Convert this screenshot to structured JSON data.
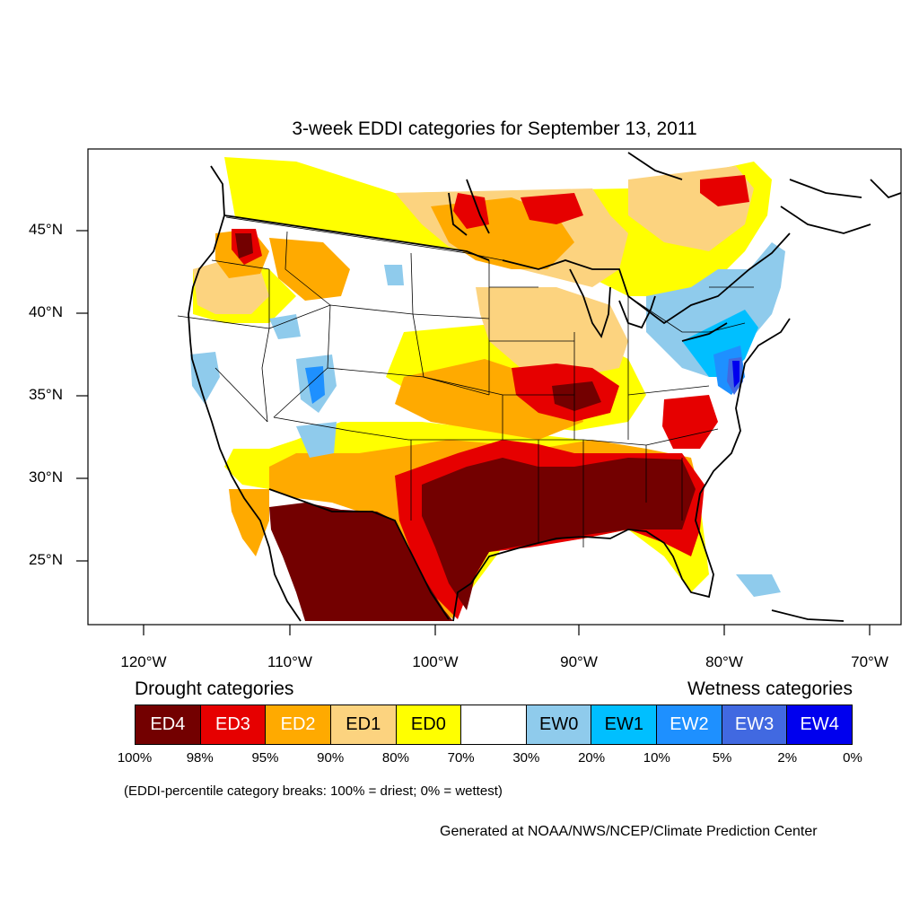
{
  "title": "3-week EDDI categories for September 13, 2011",
  "lat_labels": [
    "45°N",
    "40°N",
    "35°N",
    "30°N",
    "25°N"
  ],
  "lon_labels": [
    "120°W",
    "110°W",
    "100°W",
    "90°W",
    "80°W",
    "70°W"
  ],
  "legend": {
    "drought_heading": "Drought categories",
    "wetness_heading": "Wetness categories",
    "categories": [
      {
        "label": "ED4",
        "color": "#730000",
        "text_color": "#ffffff"
      },
      {
        "label": "ED3",
        "color": "#e60000",
        "text_color": "#ffffff"
      },
      {
        "label": "ED2",
        "color": "#ffaa00",
        "text_color": "#ffffff"
      },
      {
        "label": "ED1",
        "color": "#fcd37f",
        "text_color": "#000000"
      },
      {
        "label": "ED0",
        "color": "#ffff00",
        "text_color": "#000000"
      },
      {
        "label": "",
        "color": "#ffffff",
        "text_color": "#000000"
      },
      {
        "label": "EW0",
        "color": "#8fcbec",
        "text_color": "#000000"
      },
      {
        "label": "EW1",
        "color": "#00bfff",
        "text_color": "#000000"
      },
      {
        "label": "EW2",
        "color": "#1e90ff",
        "text_color": "#ffffff"
      },
      {
        "label": "EW3",
        "color": "#4169e1",
        "text_color": "#ffffff"
      },
      {
        "label": "EW4",
        "color": "#0000ee",
        "text_color": "#ffffff"
      }
    ],
    "percent_breaks": [
      "100%",
      "98%",
      "95%",
      "90%",
      "80%",
      "70%",
      "30%",
      "20%",
      "10%",
      "5%",
      "2%",
      "0%"
    ]
  },
  "note": "(EDDI-percentile category breaks: 100% = driest; 0% = wettest)",
  "credit": "Generated at NOAA/NWS/NCEP/Climate Prediction Center"
}
